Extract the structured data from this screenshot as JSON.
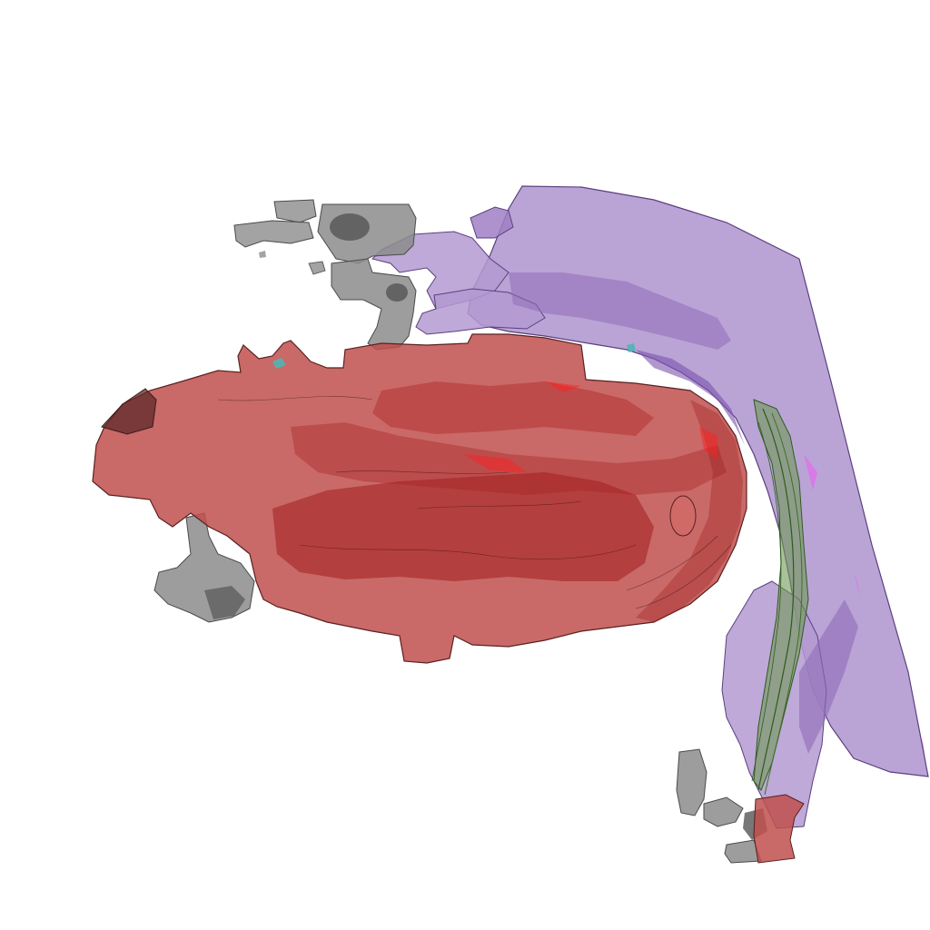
{
  "scene": {
    "background": "#ffffff",
    "structures": [
      {
        "name": "red-structure",
        "color": "#c0504d"
      },
      {
        "name": "purple-structure",
        "color": "#9b7bc2"
      },
      {
        "name": "gray-structure",
        "color": "#7a7a7a"
      },
      {
        "name": "green-structure",
        "color": "#4e7a34"
      }
    ]
  }
}
